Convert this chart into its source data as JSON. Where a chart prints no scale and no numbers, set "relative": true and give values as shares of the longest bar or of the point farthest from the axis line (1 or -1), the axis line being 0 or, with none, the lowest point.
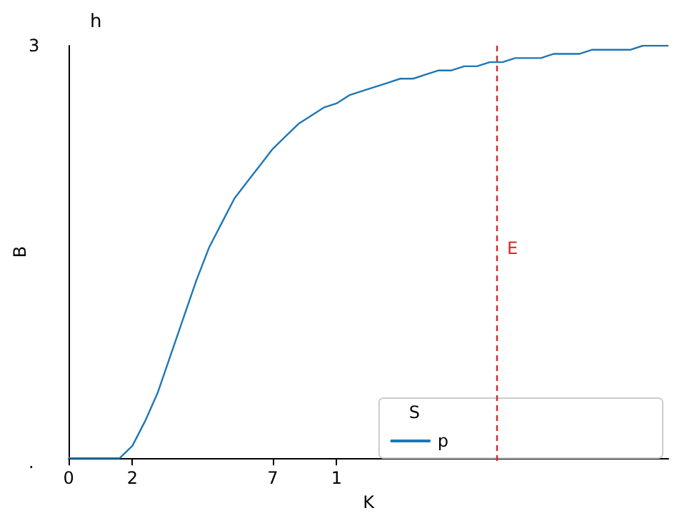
{
  "chart_data": {
    "type": "line",
    "title": "h",
    "xlabel": "K",
    "ylabel": "B",
    "legend_title": "S",
    "relative": true,
    "categories": [
      "0",
      null,
      null,
      null,
      null,
      "2",
      null,
      null,
      null,
      null,
      null,
      null,
      null,
      null,
      null,
      null,
      "7",
      null,
      null,
      null,
      null,
      "1",
      null,
      null,
      null,
      null,
      null,
      null,
      null,
      null,
      null,
      null,
      null,
      null,
      null,
      null,
      null,
      null,
      null,
      null,
      null,
      null,
      null,
      null,
      null,
      null,
      null,
      null
    ],
    "series": [
      {
        "name": "p",
        "color": "#1f77b4",
        "values": [
          0,
          0,
          0,
          0,
          0,
          0.03,
          0.09,
          0.16,
          0.25,
          0.34,
          0.43,
          0.51,
          0.57,
          0.63,
          0.67,
          0.71,
          0.75,
          0.78,
          0.81,
          0.83,
          0.85,
          0.86,
          0.88,
          0.89,
          0.9,
          0.91,
          0.92,
          0.92,
          0.93,
          0.94,
          0.94,
          0.95,
          0.95,
          0.96,
          0.96,
          0.97,
          0.97,
          0.97,
          0.98,
          0.98,
          0.98,
          0.99,
          0.99,
          0.99,
          0.99,
          1,
          1,
          1
        ]
      }
    ],
    "annotations": [
      "3",
      ".",
      "E"
    ],
    "legend": "bottom right",
    "grid": false,
    "marker": "none",
    "line_style": "solid"
  }
}
